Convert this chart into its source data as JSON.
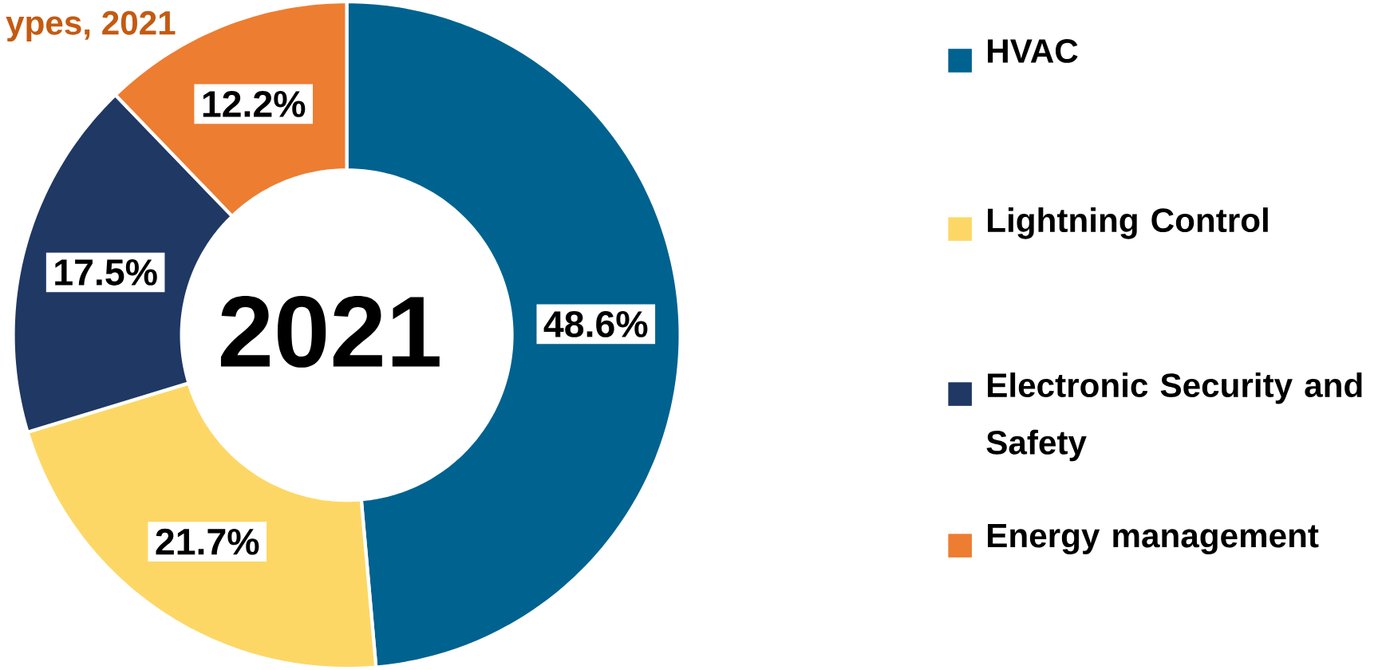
{
  "chart_data": {
    "type": "donut",
    "title": "ypes, 2021",
    "annotations": [
      "2021"
    ],
    "categories": [
      "HVAC",
      "Lightning Control",
      "Electronic Security and Safety",
      "Energy management"
    ],
    "values": [
      48.6,
      21.7,
      17.5,
      12.2
    ],
    "colors": [
      "#00628f",
      "#fdd766",
      "#1f3864",
      "#ed7d31"
    ],
    "value_labels": [
      "48.6%",
      "21.7%",
      "17.5%",
      "12.2%"
    ],
    "legend": "right"
  }
}
